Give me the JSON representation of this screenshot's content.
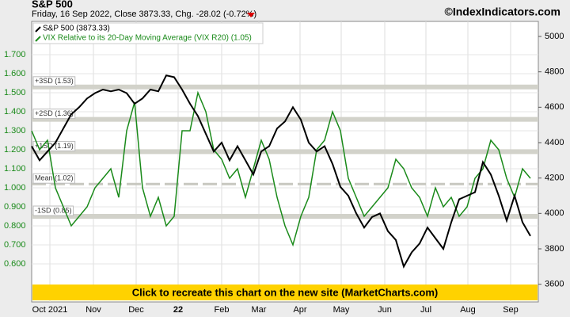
{
  "chart_data": {
    "type": "line",
    "title": "S&P 500",
    "subtitle": "Friday, 16 Sep 2022, Close 3873.33, Chg. -28.02 (-0.72%)",
    "credit": "©IndexIndicators.com",
    "banner": "Click to recreate this chart on the new site (MarketCharts.com)",
    "x": [
      0,
      1,
      2,
      3,
      4,
      5,
      6,
      7,
      8,
      9,
      10,
      11,
      12,
      13,
      14,
      15,
      16,
      17,
      18,
      19,
      20,
      21,
      22,
      23,
      24,
      25,
      26,
      27,
      28,
      29,
      30,
      31,
      32,
      33,
      34,
      35,
      36,
      37,
      38,
      39,
      40,
      41,
      42,
      43,
      44,
      45,
      46,
      47,
      48,
      49,
      50,
      51,
      52,
      53,
      54,
      55,
      56,
      57,
      58,
      59,
      60,
      61,
      62,
      63
    ],
    "xlim": [
      0,
      64
    ],
    "xticks": [
      {
        "value": 2.3,
        "label": "Oct 2021"
      },
      {
        "value": 7.8,
        "label": "Nov"
      },
      {
        "value": 13.2,
        "label": "Dec"
      },
      {
        "value": 18.5,
        "label": "22"
      },
      {
        "value": 24,
        "label": "Feb"
      },
      {
        "value": 28.7,
        "label": "Mar"
      },
      {
        "value": 33.9,
        "label": "Apr"
      },
      {
        "value": 39.1,
        "label": "May"
      },
      {
        "value": 44.6,
        "label": "Jun"
      },
      {
        "value": 49.8,
        "label": "Jul"
      },
      {
        "value": 55.1,
        "label": "Aug"
      },
      {
        "value": 60.5,
        "label": "Sep"
      }
    ],
    "ylim": [
      0.4,
      1.875
    ],
    "yticks": [
      {
        "value": 0.6,
        "label": "0.600"
      },
      {
        "value": 0.7,
        "label": "0.700"
      },
      {
        "value": 0.8,
        "label": "0.800"
      },
      {
        "value": 0.9,
        "label": "0.900"
      },
      {
        "value": 1,
        "label": "1.000"
      },
      {
        "value": 1.1,
        "label": "1.100"
      },
      {
        "value": 1.2,
        "label": "1.200"
      },
      {
        "value": 1.3,
        "label": "1.300"
      },
      {
        "value": 1.4,
        "label": "1.400"
      },
      {
        "value": 1.5,
        "label": "1.500"
      },
      {
        "value": 1.6,
        "label": "1.600"
      },
      {
        "value": 1.7,
        "label": "1.700"
      }
    ],
    "y2lim": [
      3500,
      5085
    ],
    "y2ticks": [
      3600,
      3800,
      4000,
      4200,
      4400,
      4600,
      4800,
      5000
    ],
    "bands": [
      {
        "value": 1.53,
        "label": "+3SD (1.53)"
      },
      {
        "value": 1.36,
        "label": "+2SD (1.36)"
      },
      {
        "value": 1.19,
        "label": "+1SD (1.19)"
      },
      {
        "value": 1.02,
        "label": "Mean (1.02)"
      },
      {
        "value": 0.85,
        "label": "-1SD (0.85)"
      }
    ],
    "series": [
      {
        "name": "S&P 500 (3873.33)",
        "color": "#000000",
        "axis": "y2",
        "values": [
          4380,
          4300,
          4350,
          4400,
          4480,
          4560,
          4600,
          4650,
          4680,
          4700,
          4690,
          4700,
          4680,
          4620,
          4650,
          4700,
          4690,
          4780,
          4770,
          4700,
          4620,
          4550,
          4450,
          4350,
          4400,
          4300,
          4380,
          4300,
          4220,
          4350,
          4380,
          4480,
          4520,
          4600,
          4530,
          4400,
          4350,
          4380,
          4280,
          4150,
          4100,
          4000,
          3920,
          3980,
          4000,
          3900,
          3850,
          3700,
          3780,
          3830,
          3920,
          3860,
          3800,
          3950,
          4080,
          4100,
          4120,
          4290,
          4220,
          4100,
          3960,
          4100,
          3950,
          3873
        ]
      },
      {
        "name": "VIX Relative to its 20-Day Moving Average (VIX R20) (1.05)",
        "color": "#1a8a1a",
        "values": [
          1.3,
          1.2,
          1.25,
          1.0,
          0.9,
          0.8,
          0.85,
          0.9,
          1.0,
          1.05,
          1.1,
          0.95,
          1.3,
          1.45,
          1.0,
          0.85,
          0.95,
          0.8,
          0.85,
          1.3,
          1.3,
          1.5,
          1.4,
          1.2,
          1.15,
          1.05,
          1.1,
          0.95,
          1.1,
          1.25,
          1.15,
          0.95,
          0.8,
          0.7,
          0.85,
          0.95,
          1.2,
          1.25,
          1.4,
          1.3,
          1.05,
          0.95,
          0.85,
          0.9,
          0.95,
          1.0,
          1.15,
          1.1,
          1.0,
          0.95,
          0.85,
          1.0,
          0.9,
          0.95,
          0.85,
          0.9,
          1.05,
          1.1,
          1.25,
          1.2,
          1.05,
          0.95,
          1.1,
          1.05
        ]
      }
    ]
  }
}
